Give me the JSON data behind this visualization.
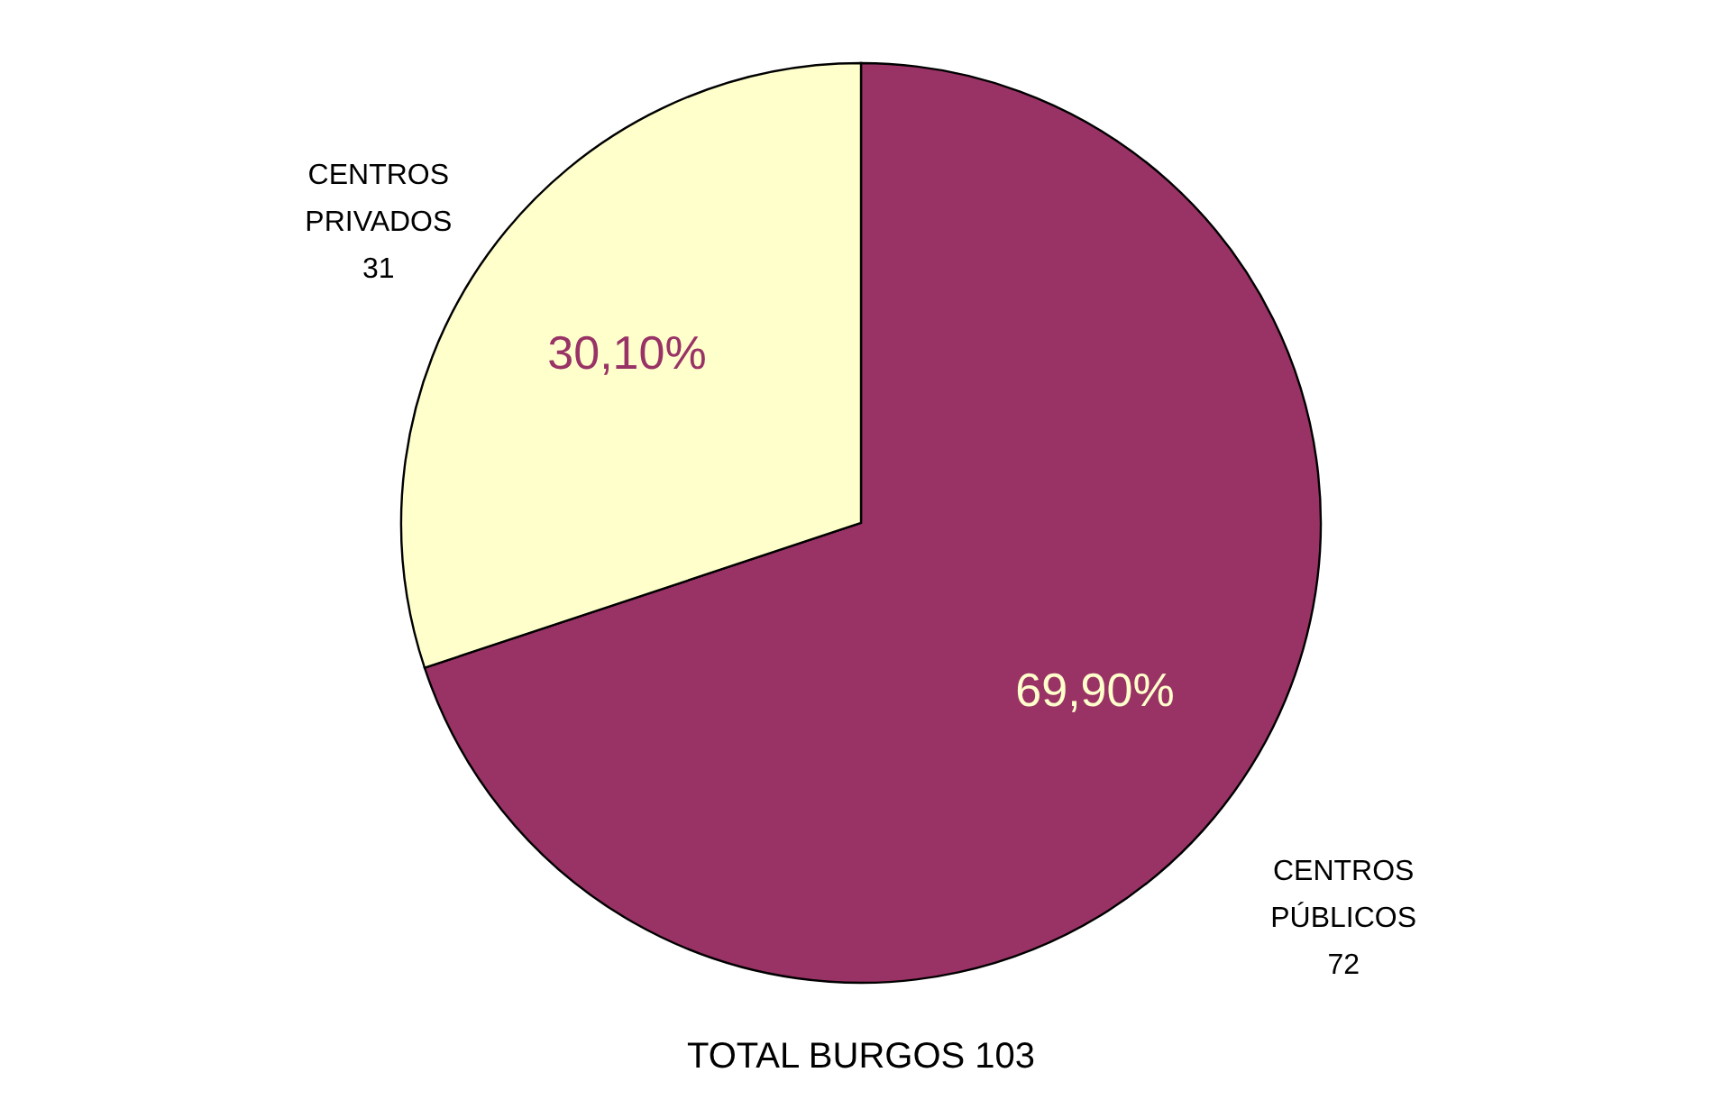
{
  "chart_data": {
    "type": "pie",
    "title": "TOTAL BURGOS 103",
    "categories": [
      "CENTROS PÚBLICOS",
      "CENTROS PRIVADOS"
    ],
    "values": [
      69.9,
      30.1
    ],
    "colors": [
      "#993366",
      "#ffffcc"
    ],
    "value_labels": [
      "69,90%",
      "30,10%"
    ],
    "annotations": [
      {
        "text": "72",
        "x": "CENTROS PÚBLICOS"
      },
      {
        "text": "31",
        "x": "CENTROS PRIVADOS"
      }
    ],
    "legend": false
  }
}
